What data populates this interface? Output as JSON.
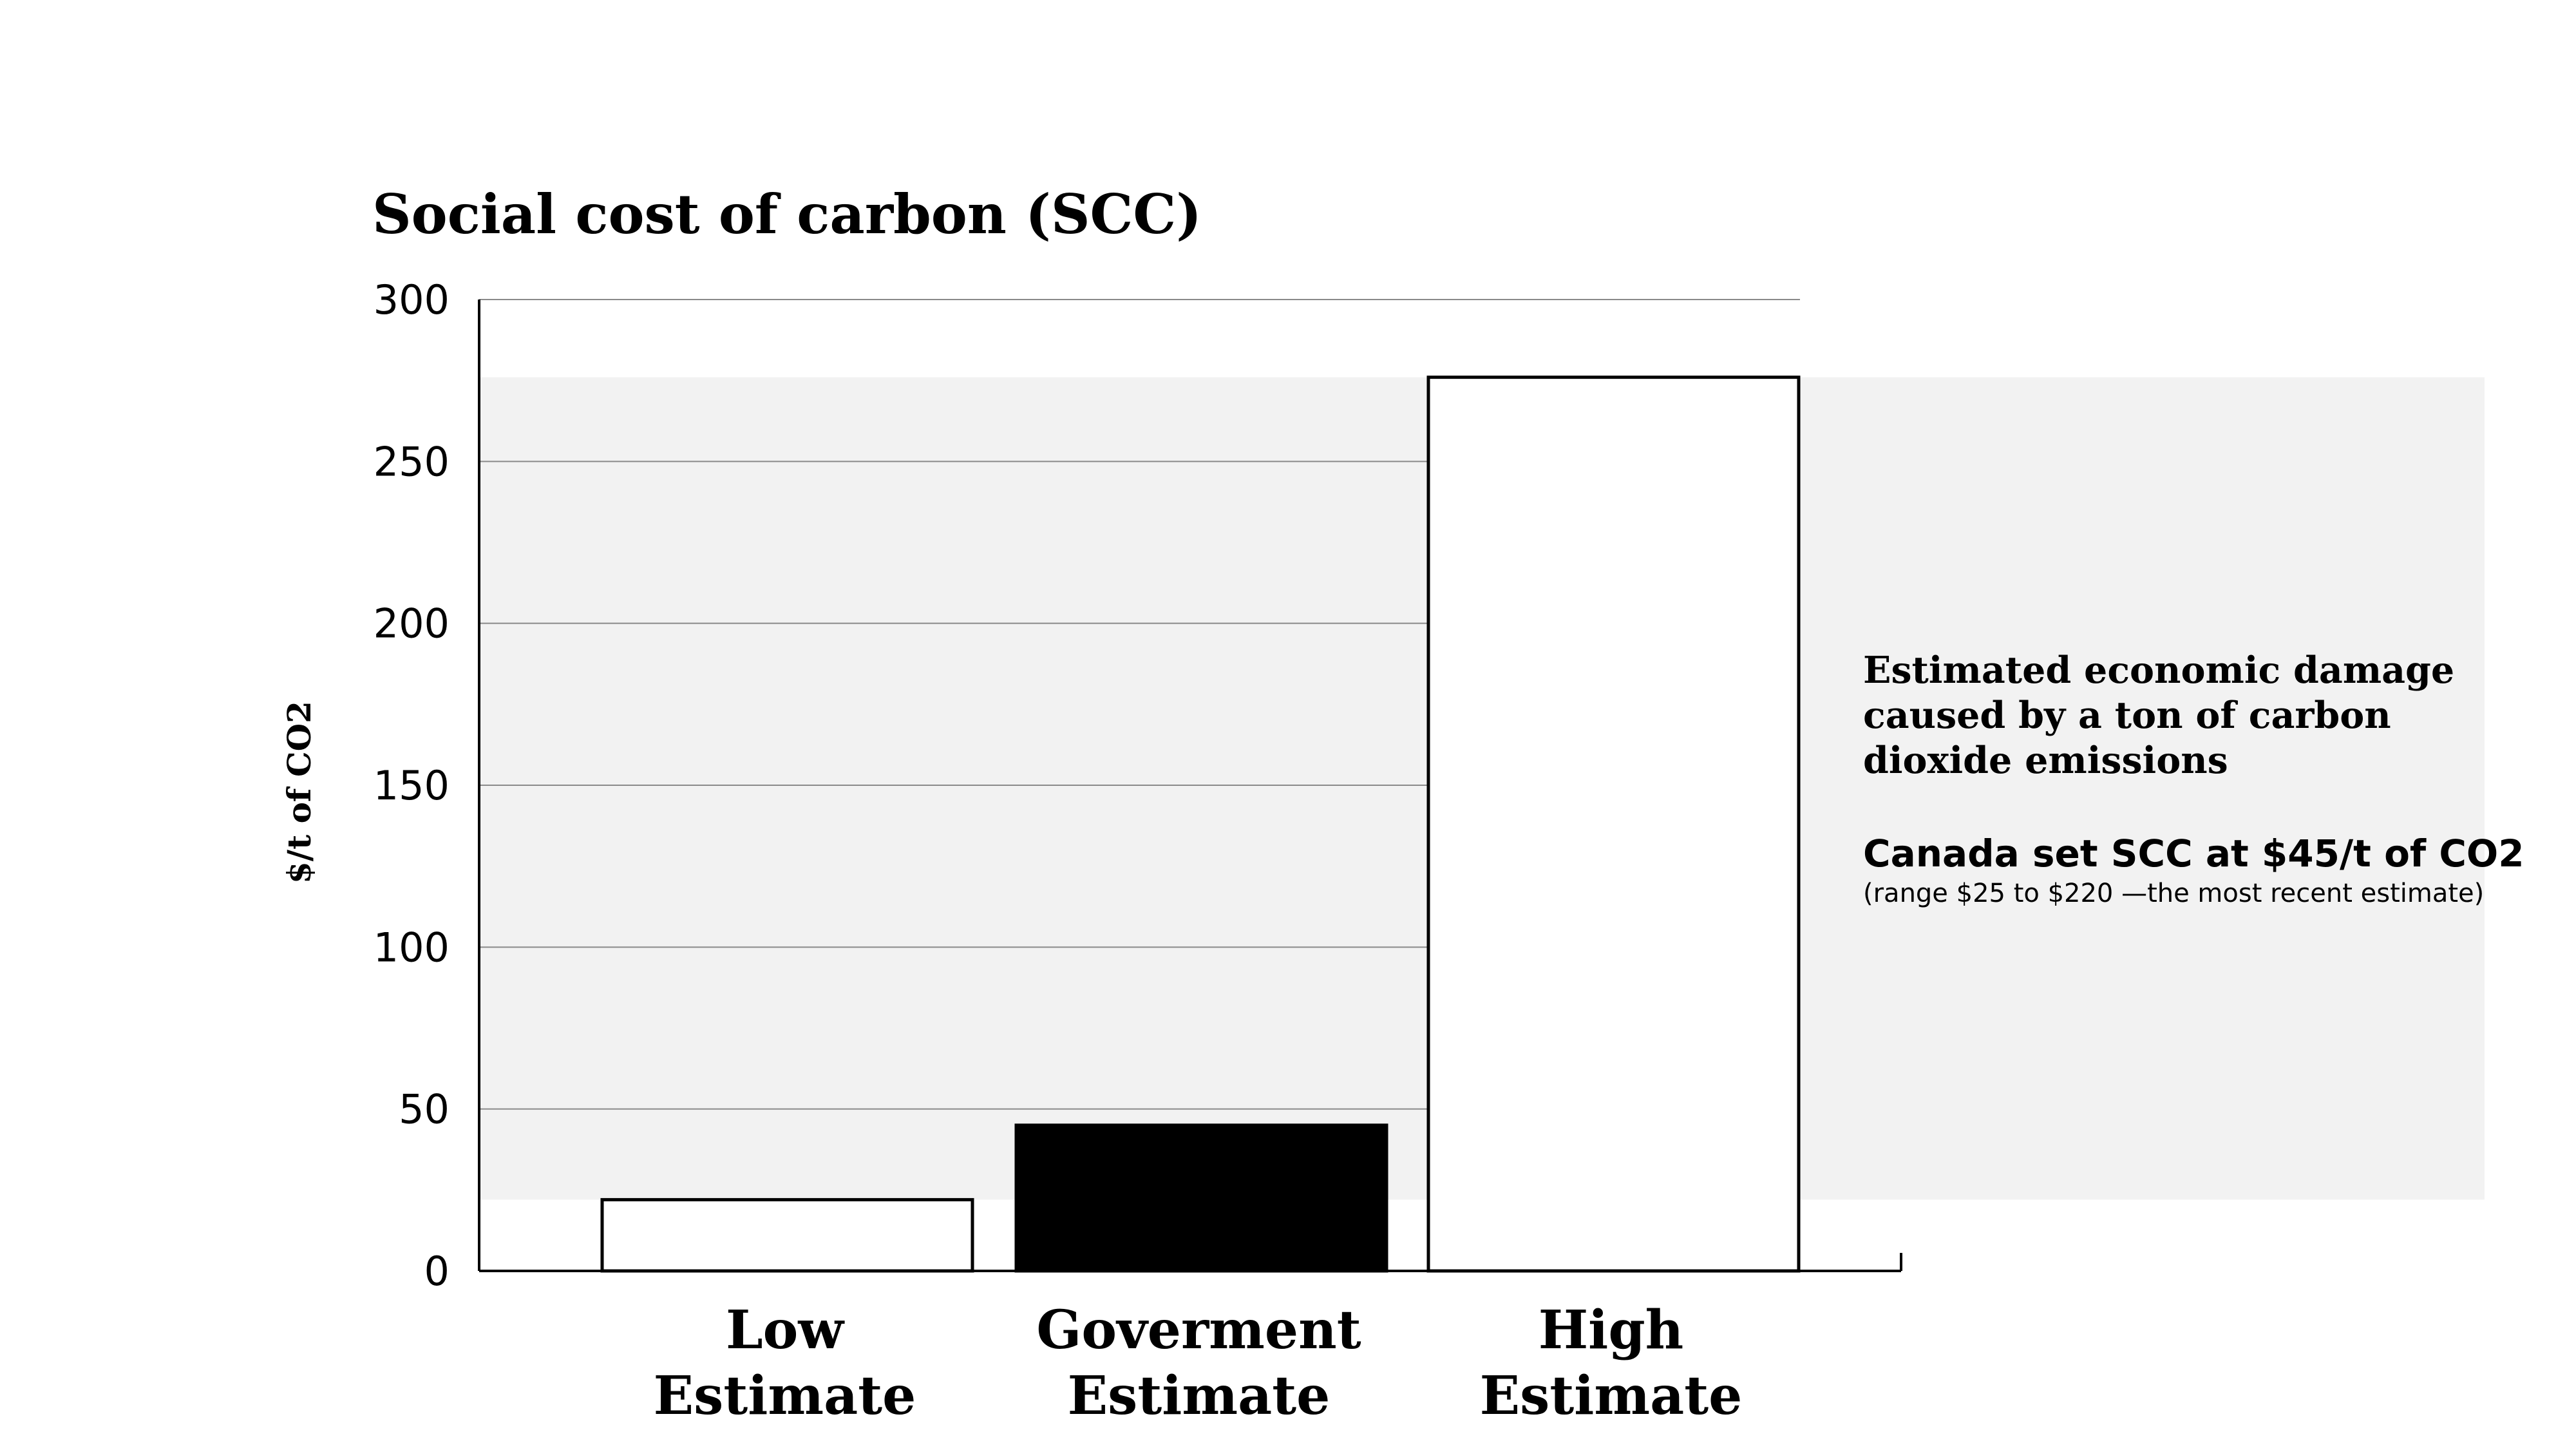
{
  "chart_data": {
    "type": "bar",
    "title": "Social cost of carbon (SCC)",
    "xlabel": "",
    "ylabel": "$/t of CO2",
    "ylim": [
      0,
      300
    ],
    "yticks": [
      "0",
      "50",
      "100",
      "150",
      "200",
      "250",
      "300"
    ],
    "grid": true,
    "categories": [
      [
        "Low",
        "Estimate"
      ],
      [
        "Goverment",
        "Estimate"
      ],
      [
        "High",
        "Estimate"
      ]
    ],
    "values": [
      22,
      45,
      276
    ],
    "bar_fills": [
      "#ffffff",
      "#000000",
      "#ffffff"
    ],
    "shaded_range": [
      22,
      276
    ],
    "shade_color": "#f2f2f2",
    "annotation": {
      "lines": [
        "Estimated economic damage",
        "caused by a ton of carbon",
        "dioxide emissions"
      ],
      "highlight": "Canada set SCC at $45/t of CO2",
      "note": "(range $25 to $220 —the most recent estimate)"
    }
  }
}
